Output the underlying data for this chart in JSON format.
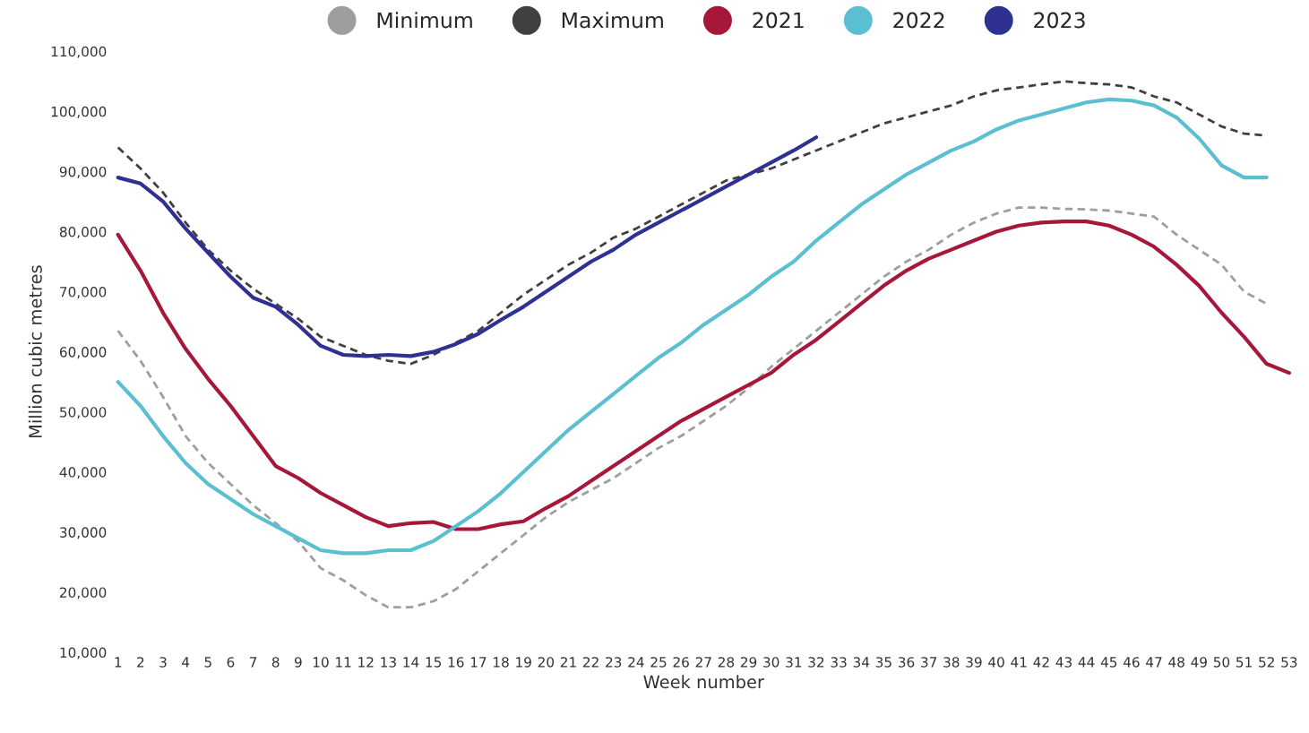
{
  "chart_data": {
    "type": "line",
    "xlabel": "Week number",
    "ylabel": "Million cubic metres",
    "categories": [
      "1",
      "2",
      "3",
      "4",
      "5",
      "6",
      "7",
      "8",
      "9",
      "10",
      "11",
      "12",
      "13",
      "14",
      "15",
      "16",
      "17",
      "18",
      "19",
      "20",
      "21",
      "22",
      "23",
      "24",
      "25",
      "26",
      "27",
      "28",
      "29",
      "30",
      "31",
      "32",
      "33",
      "34",
      "35",
      "36",
      "37",
      "38",
      "39",
      "40",
      "41",
      "42",
      "43",
      "44",
      "45",
      "46",
      "47",
      "48",
      "49",
      "50",
      "51",
      "52",
      "53"
    ],
    "ylim": [
      10000,
      110000
    ],
    "yticks": [
      {
        "value": 10000,
        "label": "10,000"
      },
      {
        "value": 20000,
        "label": "20,000"
      },
      {
        "value": 30000,
        "label": "30,000"
      },
      {
        "value": 40000,
        "label": "40,000"
      },
      {
        "value": 50000,
        "label": "50,000"
      },
      {
        "value": 60000,
        "label": "60,000"
      },
      {
        "value": 70000,
        "label": "70,000"
      },
      {
        "value": 80000,
        "label": "80,000"
      },
      {
        "value": 90000,
        "label": "90,000"
      },
      {
        "value": 100000,
        "label": "100,000"
      },
      {
        "value": 110000,
        "label": "110,000"
      }
    ],
    "grid": false,
    "legend": "top",
    "series": [
      {
        "name": "Minimum",
        "color": "#9e9e9e",
        "line_style": "dashed",
        "values": [
          63500,
          58500,
          52500,
          46000,
          41500,
          38000,
          34500,
          31500,
          28500,
          24000,
          22000,
          19500,
          17500,
          17500,
          18500,
          20500,
          23500,
          26500,
          29500,
          32500,
          35000,
          37000,
          39000,
          41500,
          44000,
          46000,
          48500,
          51000,
          54000,
          57500,
          60500,
          63500,
          66500,
          69500,
          72500,
          75000,
          77000,
          79500,
          81500,
          83000,
          84000,
          84000,
          83800,
          83700,
          83500,
          83000,
          82500,
          79500,
          77000,
          74500,
          70000,
          68000,
          null
        ]
      },
      {
        "name": "Maximum",
        "color": "#404040",
        "line_style": "dashed",
        "values": [
          94000,
          90500,
          86500,
          81500,
          77000,
          73500,
          70500,
          68000,
          65500,
          62500,
          61000,
          59500,
          58500,
          58000,
          59500,
          61500,
          63500,
          66500,
          69500,
          72000,
          74500,
          76500,
          79000,
          80500,
          82500,
          84500,
          86500,
          88500,
          89500,
          90500,
          92000,
          93500,
          95000,
          96500,
          98000,
          99000,
          100000,
          101000,
          102500,
          103500,
          104000,
          104500,
          105000,
          104700,
          104500,
          104000,
          102500,
          101500,
          99500,
          97500,
          96300,
          96000,
          null
        ]
      },
      {
        "name": "2021",
        "color": "#a6173a",
        "line_style": "solid",
        "values": [
          79500,
          73500,
          66500,
          60500,
          55500,
          51000,
          46000,
          41000,
          39000,
          36500,
          34500,
          32500,
          31000,
          31500,
          31700,
          30500,
          30500,
          31300,
          31800,
          34000,
          36000,
          38500,
          41000,
          43500,
          46000,
          48500,
          50500,
          52500,
          54500,
          56500,
          59500,
          62000,
          65000,
          68000,
          71000,
          73500,
          75500,
          77000,
          78500,
          80000,
          81000,
          81500,
          81700,
          81700,
          81000,
          79500,
          77500,
          74500,
          71000,
          66500,
          62500,
          58000,
          56500
        ]
      },
      {
        "name": "2022",
        "color": "#5bbfd2",
        "line_style": "solid",
        "values": [
          55000,
          51000,
          46000,
          41500,
          38000,
          35500,
          33000,
          31000,
          29000,
          27000,
          26500,
          26500,
          27000,
          27000,
          28500,
          31000,
          33500,
          36500,
          40000,
          43500,
          47000,
          50000,
          53000,
          56000,
          59000,
          61500,
          64500,
          67000,
          69500,
          72500,
          75000,
          78500,
          81500,
          84500,
          87000,
          89500,
          91500,
          93500,
          95000,
          97000,
          98500,
          99500,
          100500,
          101500,
          102000,
          101800,
          101000,
          99000,
          95500,
          91000,
          89000,
          89000,
          null
        ]
      },
      {
        "name": "2023",
        "color": "#2e3192",
        "line_style": "solid",
        "values": [
          89000,
          88000,
          85000,
          80500,
          76500,
          72500,
          69000,
          67500,
          64500,
          61000,
          59500,
          59300,
          59500,
          59300,
          60000,
          61300,
          63000,
          65300,
          67500,
          70000,
          72500,
          75000,
          77000,
          79500,
          81500,
          83500,
          85500,
          87500,
          89500,
          91500,
          93500,
          95700,
          null,
          null,
          null,
          null,
          null,
          null,
          null,
          null,
          null,
          null,
          null,
          null,
          null,
          null,
          null,
          null,
          null,
          null,
          null,
          null,
          null
        ]
      }
    ]
  }
}
